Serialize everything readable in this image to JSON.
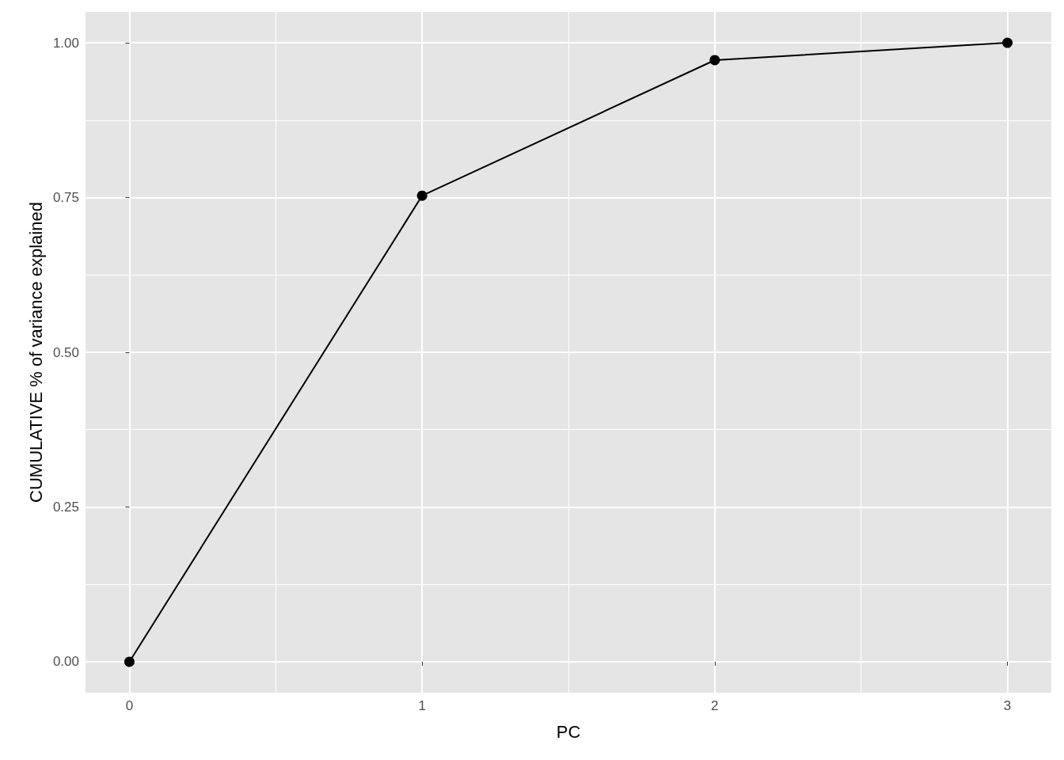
{
  "chart_data": {
    "type": "line",
    "xlabel": "PC",
    "ylabel": "CUMULATIVE % of variance explained",
    "x": [
      0,
      1,
      2,
      3
    ],
    "series": [
      {
        "color": "#000000",
        "values": [
          0,
          0.753,
          0.972,
          1.0
        ]
      }
    ],
    "xlim": [
      -0.15,
      3.15
    ],
    "xticks": [
      0,
      1,
      2,
      3
    ],
    "ylim": [
      -0.05,
      1.05
    ],
    "yticks": [
      {
        "value": 0,
        "label": "0.00"
      },
      {
        "value": 0.25,
        "label": "0.25"
      },
      {
        "value": 0.5,
        "label": "0.50"
      },
      {
        "value": 0.75,
        "label": "0.75"
      },
      {
        "value": 1,
        "label": "1.00"
      }
    ],
    "grid": true,
    "marker": "circle",
    "line_style": "solid"
  }
}
